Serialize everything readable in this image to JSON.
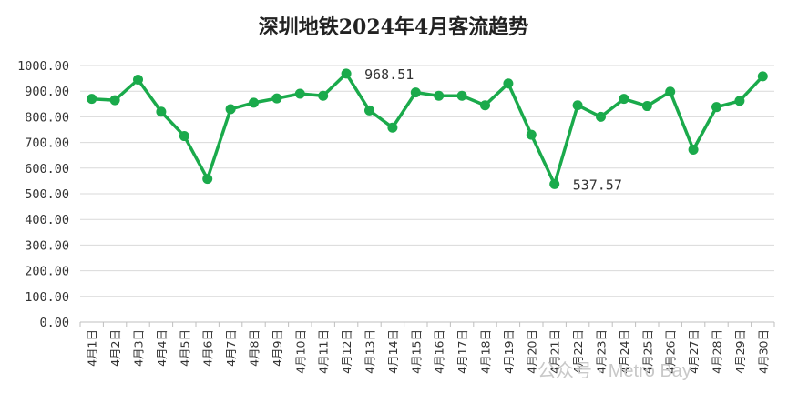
{
  "chart_data": {
    "type": "line",
    "title": "深圳地铁2024年4月客流趋势",
    "xlabel": "",
    "ylabel": "",
    "categories": [
      "4月1日",
      "4月2日",
      "4月3日",
      "4月4日",
      "4月5日",
      "4月6日",
      "4月7日",
      "4月8日",
      "4月9日",
      "4月10日",
      "4月11日",
      "4月12日",
      "4月13日",
      "4月14日",
      "4月15日",
      "4月16日",
      "4月17日",
      "4月18日",
      "4月19日",
      "4月20日",
      "4月21日",
      "4月22日",
      "4月23日",
      "4月24日",
      "4月25日",
      "4月26日",
      "4月27日",
      "4月28日",
      "4月29日",
      "4月30日"
    ],
    "series": [
      {
        "values": [
          870,
          865,
          945,
          820,
          725,
          558,
          830,
          855,
          872,
          890,
          882,
          968.51,
          825,
          758,
          895,
          882,
          882,
          845,
          930,
          730,
          537.57,
          845,
          800,
          870,
          842,
          898,
          672,
          838,
          862,
          958
        ],
        "color": "#1aaa4b"
      }
    ],
    "ylim": [
      0,
      1000
    ],
    "yticks": [
      "1000.00",
      "900.00",
      "800.00",
      "700.00",
      "600.00",
      "500.00",
      "400.00",
      "300.00",
      "200.00",
      "100.00",
      "0.00"
    ],
    "data_labels": [
      {
        "index": 11,
        "text": "968.51"
      },
      {
        "index": 20,
        "text": "537.57"
      }
    ],
    "grid": true,
    "legend": "none",
    "watermark": "公众号 · Metro Bay"
  }
}
